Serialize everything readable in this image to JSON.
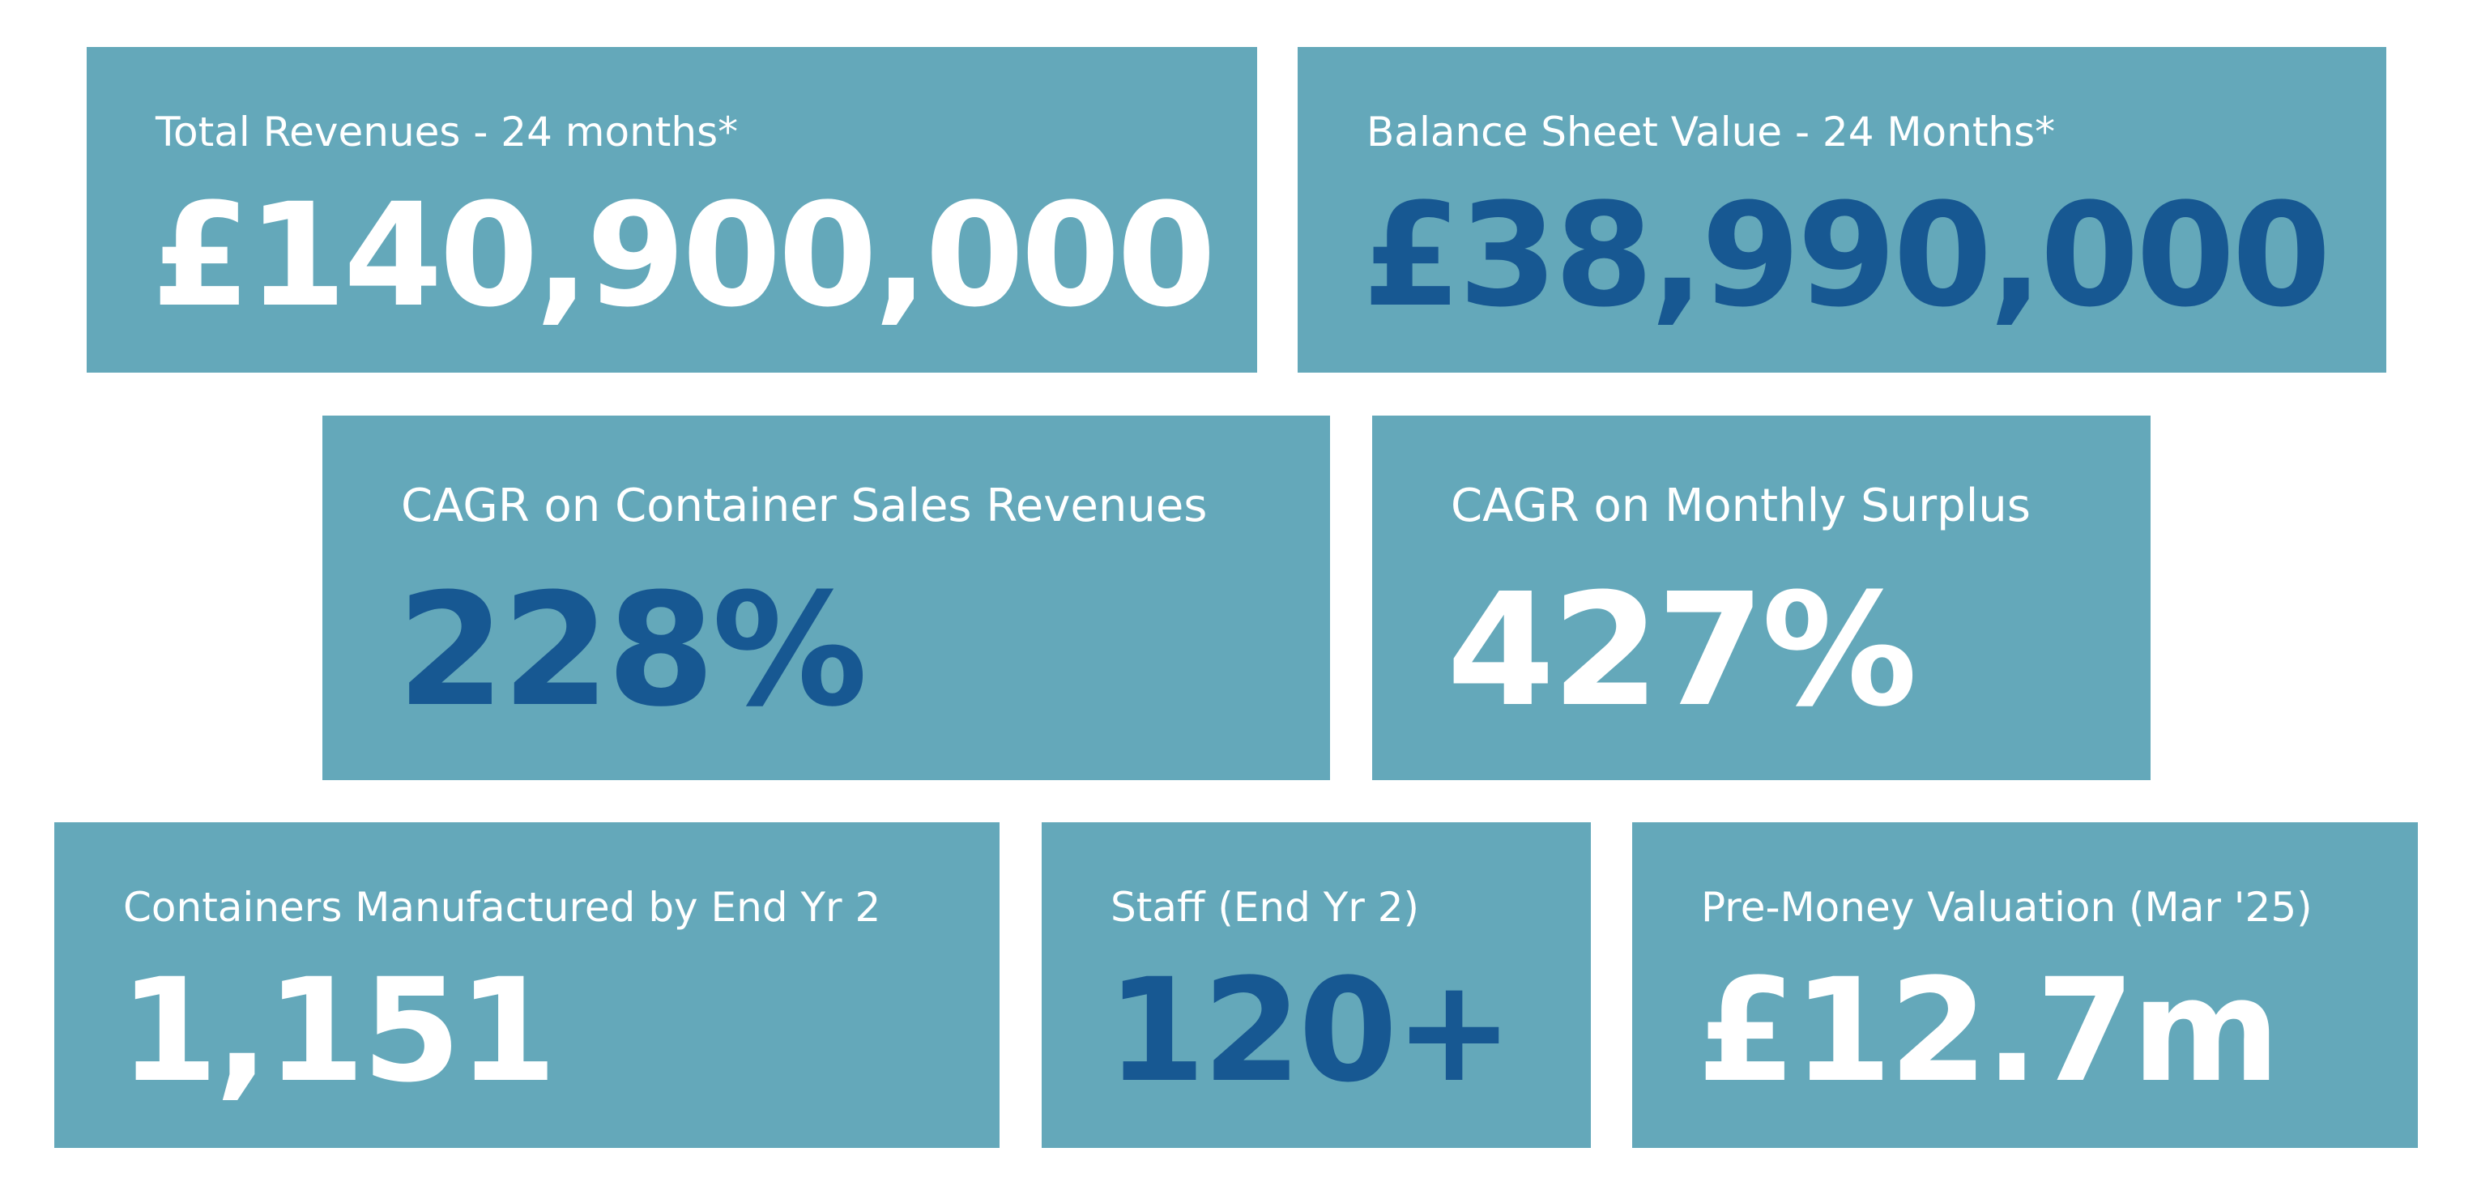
{
  "colors": {
    "background": "#ffffff",
    "card": "#64a8ba",
    "text_light": "#ffffff",
    "text_dark": "#175892"
  },
  "metrics": {
    "total_revenues": {
      "label": "Total Revenues - 24 months*",
      "value": "£140,900,000"
    },
    "balance_sheet": {
      "label": "Balance Sheet Value - 24 Months*",
      "value": "£38,990,000"
    },
    "cagr_container_sales": {
      "label": "CAGR on Container Sales Revenues",
      "value": "228%"
    },
    "cagr_monthly_surplus": {
      "label": "CAGR on Monthly Surplus",
      "value": "427%"
    },
    "containers_manufactured": {
      "label": "Containers Manufactured by End Yr 2",
      "value": "1,151"
    },
    "staff": {
      "label": "Staff (End Yr 2)",
      "value": "120+"
    },
    "pre_money_valuation": {
      "label": "Pre-Money Valuation (Mar '25)",
      "value": "£12.7m"
    }
  }
}
